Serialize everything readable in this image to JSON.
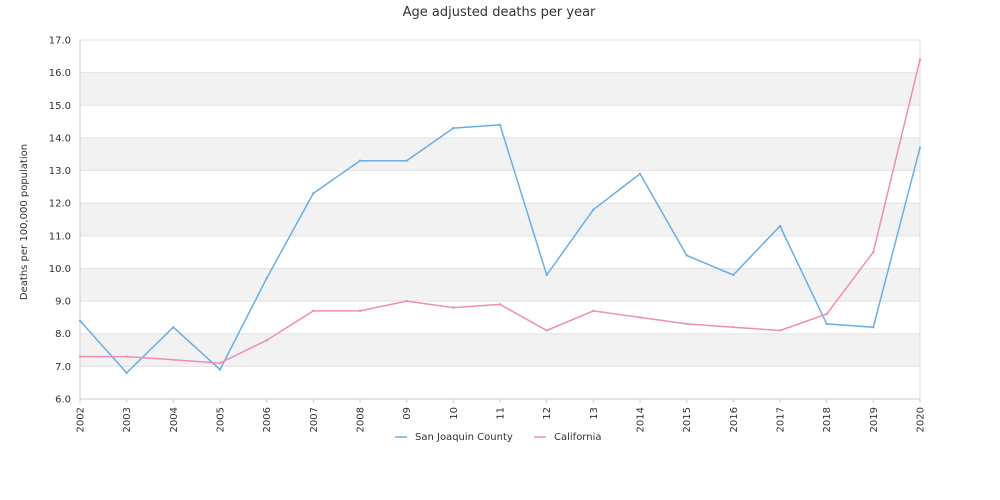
{
  "chart_data": {
    "type": "line",
    "title": "Age adjusted deaths per year",
    "xlabel": "",
    "ylabel": "Deaths per 100,000 population",
    "categories": [
      "2002",
      "2003",
      "2004",
      "2005",
      "2006",
      "2007",
      "2008",
      "09",
      "10",
      "11",
      "12",
      "13",
      "2014",
      "2015",
      "2016",
      "2017",
      "2018",
      "2019",
      "2020"
    ],
    "ylim": [
      6.0,
      17.0
    ],
    "yticks": [
      "6.0",
      "7.0",
      "8.0",
      "9.0",
      "10.0",
      "11.0",
      "12.0",
      "13.0",
      "14.0",
      "15.0",
      "16.0",
      "17.0"
    ],
    "grid": "alternating horizontal bands",
    "legend_position": "bottom",
    "series": [
      {
        "name": "San Joaquin County",
        "color": "#6aaee8",
        "values": [
          8.4,
          6.8,
          8.2,
          6.9,
          9.7,
          12.3,
          13.3,
          13.3,
          14.3,
          14.4,
          9.8,
          11.8,
          12.9,
          10.4,
          9.8,
          11.3,
          8.3,
          8.2,
          13.7
        ]
      },
      {
        "name": "California",
        "color": "#f08cbc",
        "values": [
          7.3,
          7.3,
          7.2,
          7.1,
          7.8,
          8.7,
          8.7,
          9.0,
          8.8,
          8.9,
          8.1,
          8.7,
          8.5,
          8.3,
          8.2,
          8.1,
          8.6,
          10.5,
          16.4
        ]
      }
    ]
  }
}
